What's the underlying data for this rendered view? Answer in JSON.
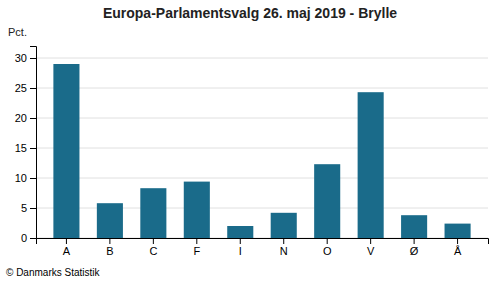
{
  "chart_data": {
    "type": "bar",
    "title": "Europa-Parlamentsvalg 26. maj 2019 - Brylle",
    "categories": [
      "A",
      "B",
      "C",
      "F",
      "I",
      "N",
      "O",
      "V",
      "Ø",
      "Å"
    ],
    "values": [
      29.0,
      5.8,
      8.3,
      9.4,
      2.0,
      4.2,
      12.3,
      24.3,
      3.8,
      2.4
    ],
    "color": "#1a6b8a",
    "ylabel": "Pct.",
    "ylim": [
      0,
      32
    ],
    "yticks": [
      0,
      5,
      10,
      15,
      20,
      25,
      30
    ],
    "grid": true,
    "annotations": [
      "© Danmarks Statistik"
    ]
  }
}
